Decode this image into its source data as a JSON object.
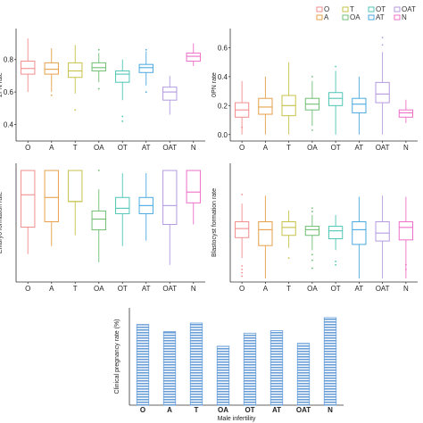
{
  "legend": {
    "entries": [
      {
        "label": "O",
        "color": "#f28e8e"
      },
      {
        "label": "A",
        "color": "#e6a04a"
      },
      {
        "label": "T",
        "color": "#c7c24a"
      },
      {
        "label": "OA",
        "color": "#6fbf73"
      },
      {
        "label": "OT",
        "color": "#4fc6b5"
      },
      {
        "label": "AT",
        "color": "#4aa9e0"
      },
      {
        "label": "OAT",
        "color": "#b49ae0"
      },
      {
        "label": "N",
        "color": "#ee6fc7"
      }
    ]
  },
  "chart_data": [
    {
      "type": "box",
      "ylabel": "2PN rate",
      "categories": [
        "O",
        "A",
        "T",
        "OA",
        "OT",
        "AT",
        "OAT",
        "N"
      ],
      "ylim": [
        0.32,
        0.98
      ],
      "yticks": [
        "0.4",
        "0.6",
        "0.8"
      ],
      "boxes": [
        {
          "min": 0.6,
          "q1": 0.71,
          "median": 0.745,
          "q3": 0.79,
          "max": 0.93,
          "outliers": []
        },
        {
          "min": 0.6,
          "q1": 0.71,
          "median": 0.74,
          "q3": 0.78,
          "max": 0.87,
          "outliers": [
            0.58
          ]
        },
        {
          "min": 0.59,
          "q1": 0.69,
          "median": 0.73,
          "q3": 0.78,
          "max": 0.89,
          "outliers": [
            0.49
          ]
        },
        {
          "min": 0.66,
          "q1": 0.73,
          "median": 0.75,
          "q3": 0.78,
          "max": 0.84,
          "outliers": [
            0.86,
            0.62
          ]
        },
        {
          "min": 0.55,
          "q1": 0.66,
          "median": 0.71,
          "q3": 0.73,
          "max": 0.8,
          "outliers": [
            0.45,
            0.42
          ]
        },
        {
          "min": 0.64,
          "q1": 0.72,
          "median": 0.75,
          "q3": 0.77,
          "max": 0.85,
          "outliers": [
            0.86,
            0.6
          ]
        },
        {
          "min": 0.46,
          "q1": 0.55,
          "median": 0.6,
          "q3": 0.63,
          "max": 0.7,
          "outliers": []
        },
        {
          "min": 0.76,
          "q1": 0.79,
          "median": 0.82,
          "q3": 0.84,
          "max": 0.9,
          "outliers": []
        }
      ]
    },
    {
      "type": "box",
      "ylabel": "0PN rate",
      "categories": [
        "O",
        "A",
        "T",
        "OA",
        "OT",
        "AT",
        "OAT",
        "N"
      ],
      "ylim": [
        -0.02,
        0.72
      ],
      "yticks": [
        "0.0",
        "0.2",
        "0.4",
        "0.6"
      ],
      "boxes": [
        {
          "min": 0.0,
          "q1": 0.12,
          "median": 0.17,
          "q3": 0.22,
          "max": 0.37,
          "outliers": [
            0.05
          ]
        },
        {
          "min": 0.0,
          "q1": 0.14,
          "median": 0.19,
          "q3": 0.25,
          "max": 0.4,
          "outliers": []
        },
        {
          "min": 0.0,
          "q1": 0.13,
          "median": 0.2,
          "q3": 0.27,
          "max": 0.5,
          "outliers": []
        },
        {
          "min": 0.06,
          "q1": 0.17,
          "median": 0.21,
          "q3": 0.25,
          "max": 0.37,
          "outliers": [
            0.4,
            0.03
          ]
        },
        {
          "min": 0.0,
          "q1": 0.2,
          "median": 0.25,
          "q3": 0.29,
          "max": 0.44,
          "outliers": [
            0.47
          ]
        },
        {
          "min": 0.0,
          "q1": 0.15,
          "median": 0.21,
          "q3": 0.25,
          "max": 0.4,
          "outliers": []
        },
        {
          "min": 0.0,
          "q1": 0.22,
          "median": 0.28,
          "q3": 0.36,
          "max": 0.57,
          "outliers": [
            0.67,
            0.62
          ]
        },
        {
          "min": 0.08,
          "q1": 0.12,
          "median": 0.15,
          "q3": 0.17,
          "max": 0.24,
          "outliers": []
        }
      ]
    },
    {
      "type": "box",
      "ylabel": "Embryo formation rate",
      "categories": [
        "O",
        "A",
        "T",
        "OA",
        "OT",
        "AT",
        "OAT",
        "N"
      ],
      "ylim": [
        0.6,
        1.02
      ],
      "yticks": [],
      "boxes": [
        {
          "min": 0.69,
          "q1": 0.79,
          "median": 0.91,
          "q3": 1.0,
          "max": 1.0,
          "outliers": []
        },
        {
          "min": 0.72,
          "q1": 0.81,
          "median": 0.9,
          "q3": 1.0,
          "max": 1.0,
          "outliers": []
        },
        {
          "min": 0.76,
          "q1": 0.885,
          "median": 0.885,
          "q3": 1.0,
          "max": 1.0,
          "outliers": []
        },
        {
          "min": 0.66,
          "q1": 0.78,
          "median": 0.82,
          "q3": 0.85,
          "max": 0.93,
          "outliers": [
            1.0
          ]
        },
        {
          "min": 0.72,
          "q1": 0.84,
          "median": 0.86,
          "q3": 0.9,
          "max": 0.99,
          "outliers": []
        },
        {
          "min": 0.74,
          "q1": 0.84,
          "median": 0.87,
          "q3": 0.9,
          "max": 0.99,
          "outliers": []
        },
        {
          "min": 0.65,
          "q1": 0.8,
          "median": 0.87,
          "q3": 1.0,
          "max": 1.0,
          "outliers": []
        },
        {
          "min": 0.8,
          "q1": 0.88,
          "median": 0.92,
          "q3": 1.0,
          "max": 1.0,
          "outliers": []
        }
      ]
    },
    {
      "type": "box",
      "ylabel": "Blastocyst formation rate",
      "categories": [
        "O",
        "A",
        "T",
        "OA",
        "OT",
        "AT",
        "OAT",
        "N"
      ],
      "ylim": [
        0.0,
        1.0
      ],
      "yticks": [],
      "boxes": [
        {
          "min": 0.18,
          "q1": 0.36,
          "median": 0.44,
          "q3": 0.5,
          "max": 0.66,
          "outliers": [
            0.74,
            0.11,
            0.08,
            0.05,
            0.02
          ]
        },
        {
          "min": 0.0,
          "q1": 0.29,
          "median": 0.43,
          "q3": 0.5,
          "max": 0.73,
          "outliers": []
        },
        {
          "min": 0.27,
          "q1": 0.38,
          "median": 0.45,
          "q3": 0.5,
          "max": 0.6,
          "outliers": [
            0.18
          ]
        },
        {
          "min": 0.25,
          "q1": 0.38,
          "median": 0.43,
          "q3": 0.46,
          "max": 0.56,
          "outliers": [
            0.62,
            0.59,
            0.21,
            0.16,
            0.09
          ]
        },
        {
          "min": 0.25,
          "q1": 0.35,
          "median": 0.42,
          "q3": 0.46,
          "max": 0.56,
          "outliers": [
            0.15,
            0.12
          ]
        },
        {
          "min": 0.0,
          "q1": 0.3,
          "median": 0.43,
          "q3": 0.5,
          "max": 0.72,
          "outliers": []
        },
        {
          "min": 0.0,
          "q1": 0.33,
          "median": 0.4,
          "q3": 0.5,
          "max": 0.73,
          "outliers": []
        },
        {
          "min": 0.0,
          "q1": 0.34,
          "median": 0.45,
          "q3": 0.5,
          "max": 0.72,
          "outliers": [
            0.12,
            0.08
          ]
        }
      ]
    },
    {
      "type": "bar",
      "ylabel": "Clinical pregnancy rate (%)",
      "xlabel": "Male infertility",
      "categories": [
        "O",
        "A",
        "T",
        "OA",
        "OT",
        "AT",
        "OAT",
        "N"
      ],
      "values": [
        41.5,
        37.8,
        42.2,
        30.3,
        37.0,
        38.3,
        31.8,
        45.0
      ],
      "ylim": [
        0,
        50
      ],
      "bar_color": "#6a9fd8"
    }
  ]
}
